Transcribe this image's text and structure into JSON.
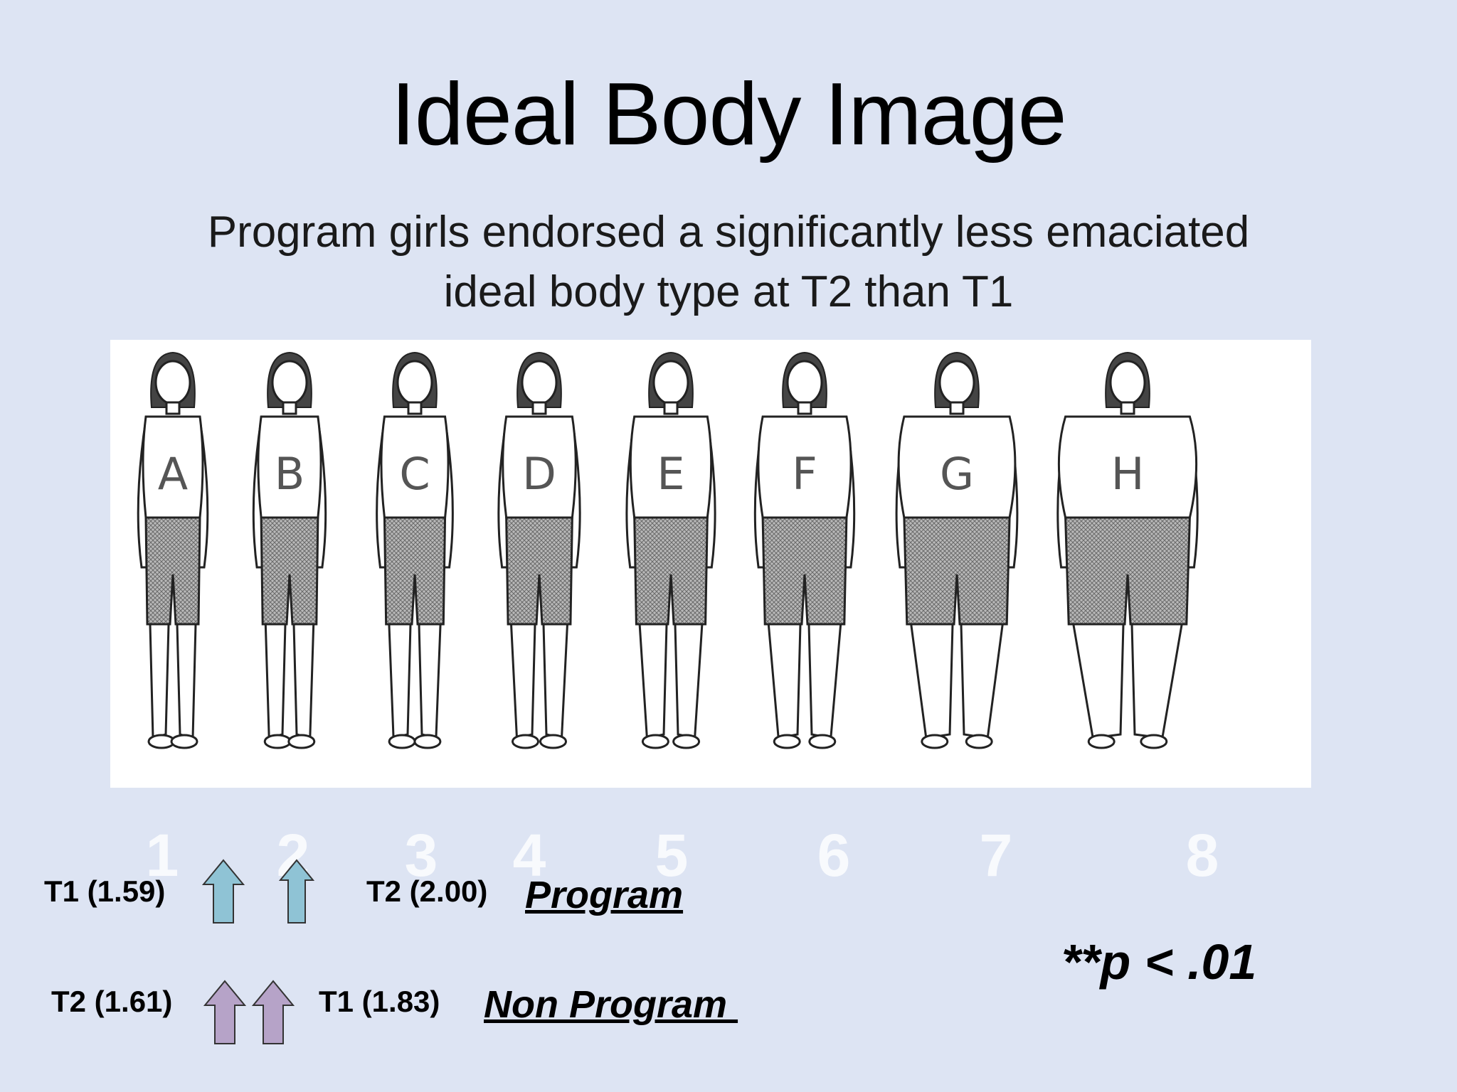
{
  "slide": {
    "title": "Ideal Body Image",
    "subtitle_line1": "Program girls endorsed a significantly less emaciated",
    "subtitle_line2": "ideal body type at T2 than T1"
  },
  "figures": [
    {
      "letter": "A",
      "number": "1"
    },
    {
      "letter": "B",
      "number": "2"
    },
    {
      "letter": "C",
      "number": "3"
    },
    {
      "letter": "D",
      "number": "4"
    },
    {
      "letter": "E",
      "number": "5"
    },
    {
      "letter": "F",
      "number": "6"
    },
    {
      "letter": "G",
      "number": "7"
    },
    {
      "letter": "H",
      "number": "8"
    }
  ],
  "program": {
    "t1_label": "T1 (1.59)",
    "t2_label": "T2 (2.00)",
    "group_label": "Program",
    "arrow_color": "#8fc3d5"
  },
  "non_program": {
    "t2_label": "T2 (1.61)",
    "t1_label": "T1 (1.83)",
    "group_label": "Non Program ",
    "arrow_color": "#b6a3c8"
  },
  "significance": "**p < .01"
}
